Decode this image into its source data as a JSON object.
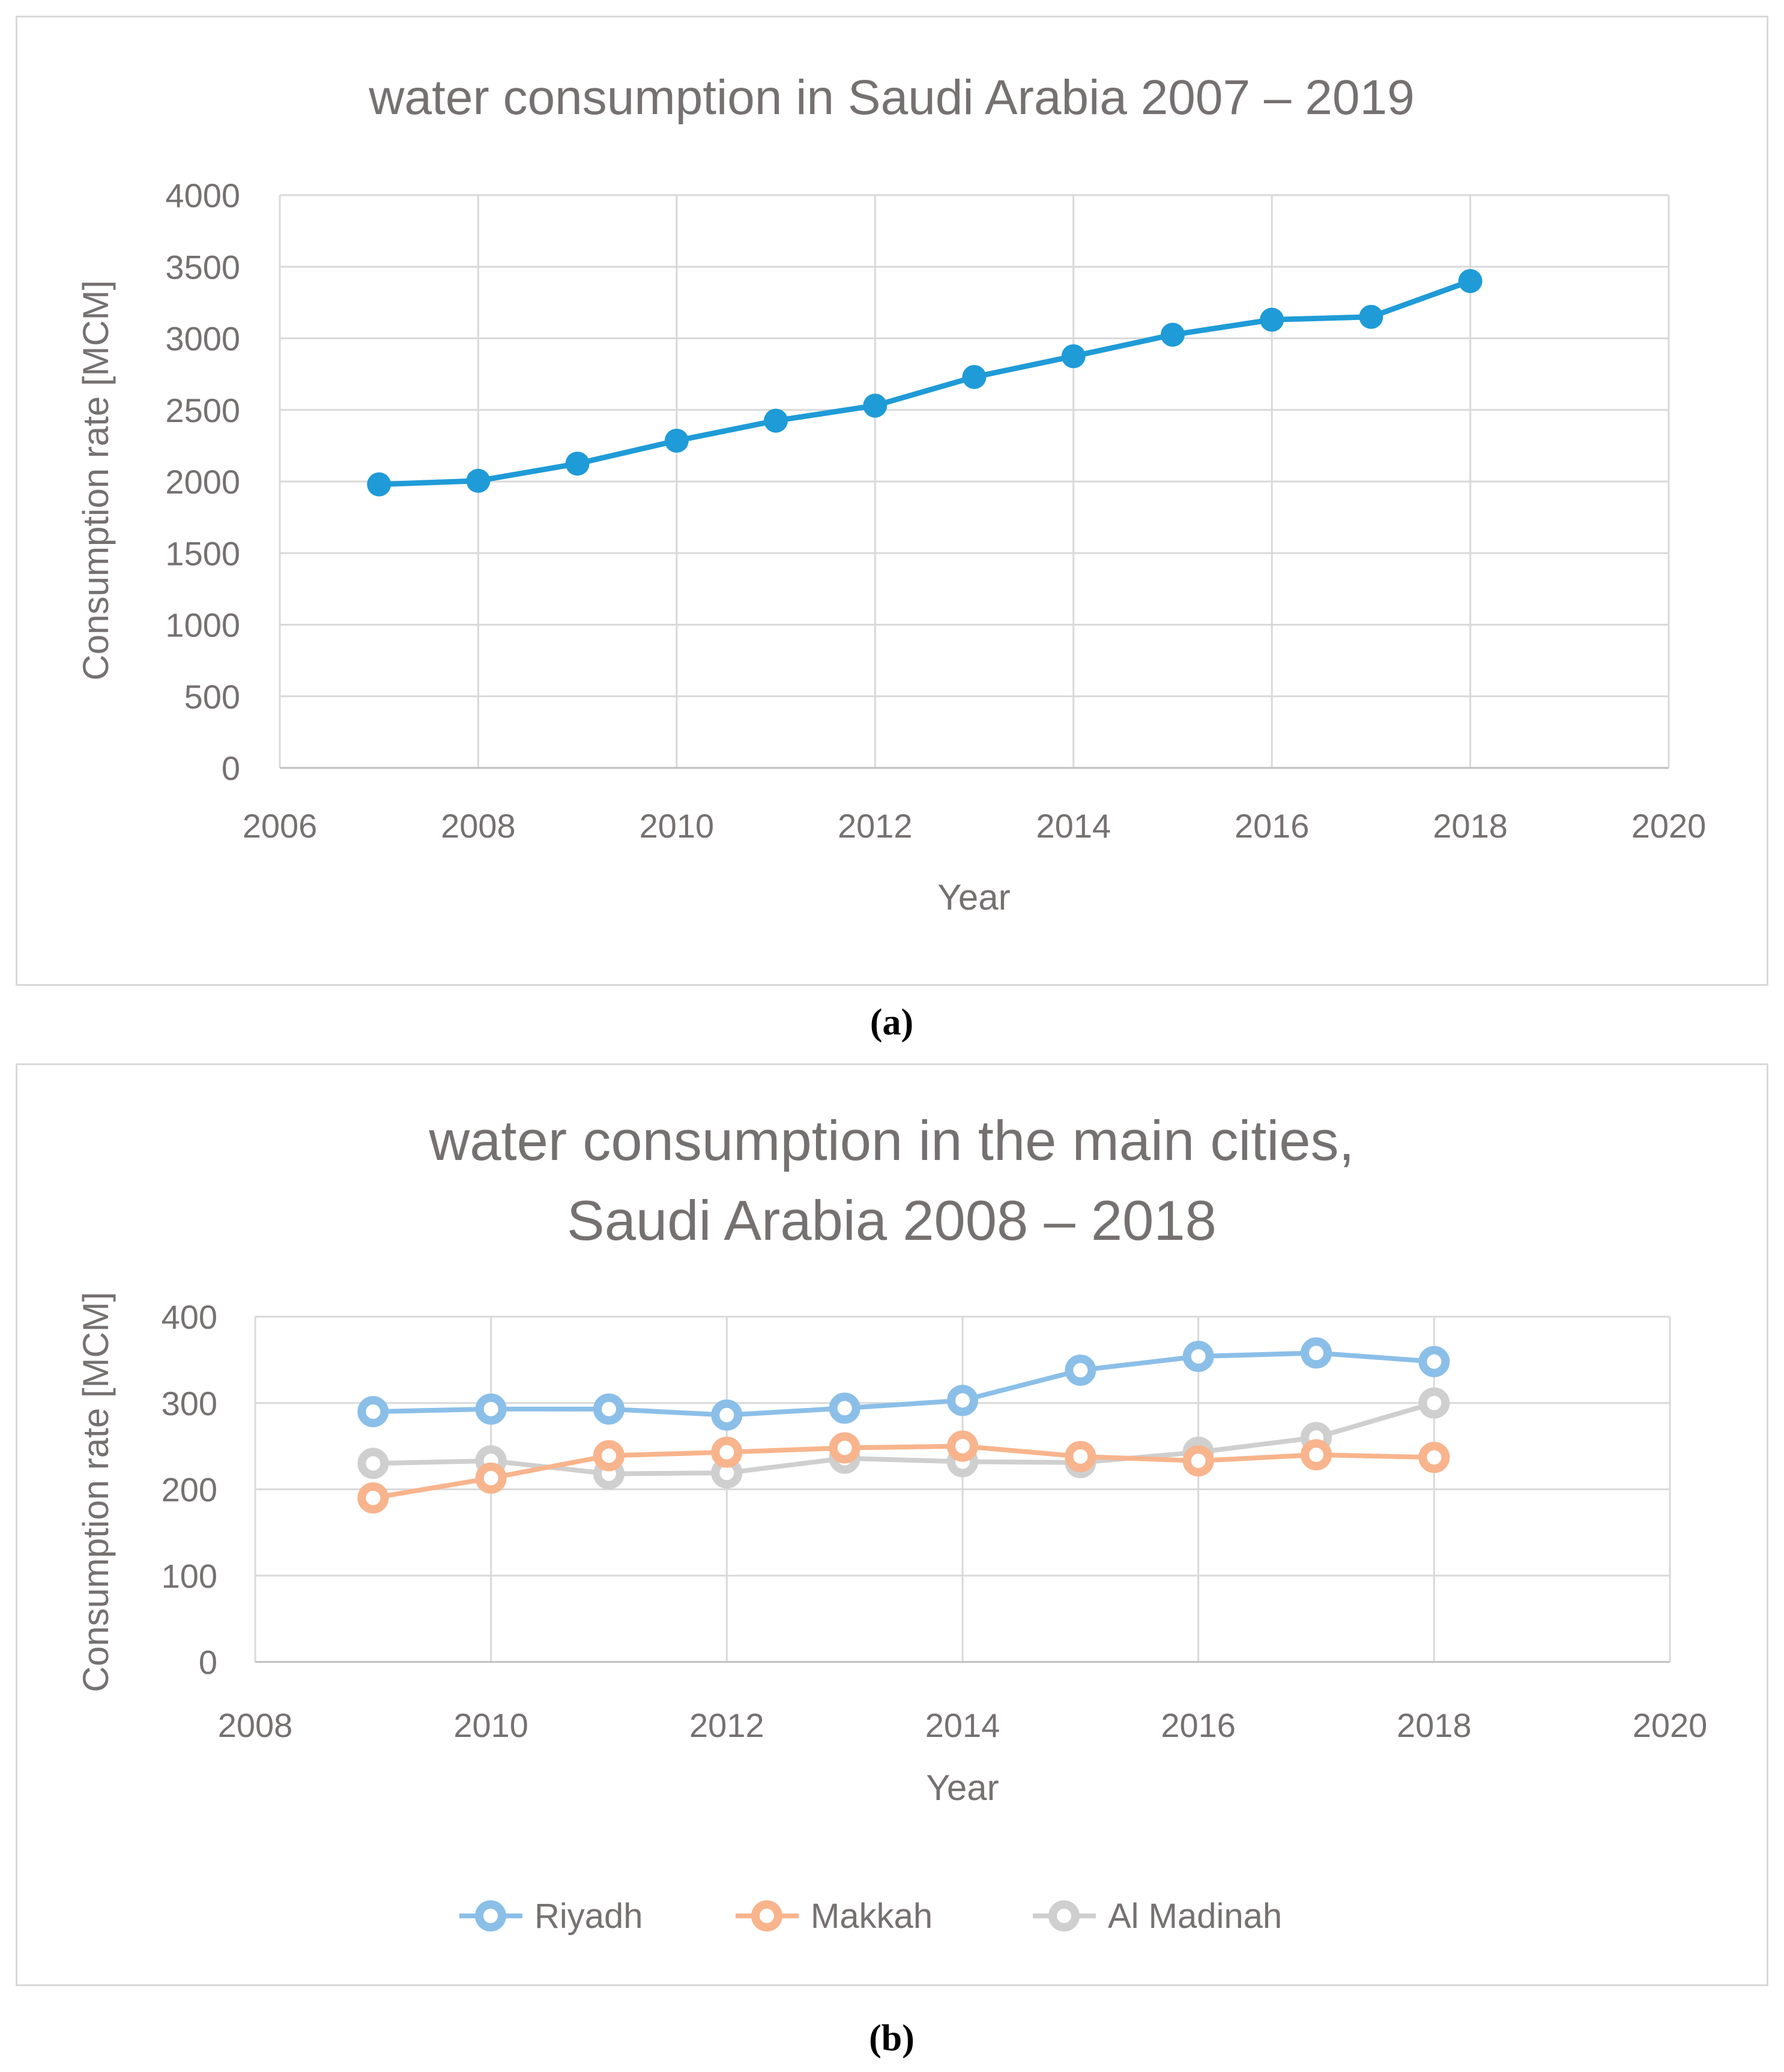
{
  "chart_data": [
    {
      "type": "line",
      "title": "water consumption in Saudi Arabia 2007 – 2019",
      "xlabel": "Year",
      "ylabel": "Consumption rate [MCM]",
      "xlim": [
        2006,
        2020
      ],
      "ylim": [
        0,
        4000
      ],
      "xticks": [
        2006,
        2008,
        2010,
        2012,
        2014,
        2016,
        2018,
        2020
      ],
      "yticks": [
        0,
        500,
        1000,
        1500,
        2000,
        2500,
        3000,
        3500,
        4000
      ],
      "grid": true,
      "legend": "none",
      "caption": "(a)",
      "series": [
        {
          "name": "Saudi Arabia",
          "color": "#1f9bd7",
          "x": [
            2007,
            2008,
            2009,
            2010,
            2011,
            2012,
            2013,
            2014,
            2015,
            2016,
            2017,
            2018
          ],
          "values": [
            1980,
            2005,
            2125,
            2285,
            2425,
            2530,
            2730,
            2875,
            3025,
            3130,
            3150,
            3400
          ]
        }
      ]
    },
    {
      "type": "line",
      "title": "water consumption in the main cities, Saudi Arabia 2008 – 2018",
      "xlabel": "Year",
      "ylabel": "Consumption rate [MCM]",
      "xlim": [
        2008,
        2020
      ],
      "ylim": [
        0,
        400
      ],
      "xticks": [
        2008,
        2010,
        2012,
        2014,
        2016,
        2018,
        2020
      ],
      "yticks": [
        0,
        100,
        200,
        300,
        400
      ],
      "grid": true,
      "legend": "bottom",
      "caption": "(b)",
      "series": [
        {
          "name": "Riyadh",
          "color": "#8bbfe8",
          "x": [
            2009,
            2010,
            2011,
            2012,
            2013,
            2014,
            2015,
            2016,
            2017,
            2018
          ],
          "values": [
            290,
            293,
            293,
            286,
            294,
            303,
            338,
            354,
            358,
            348
          ]
        },
        {
          "name": "Makkah",
          "color": "#f8b48c",
          "x": [
            2009,
            2010,
            2011,
            2012,
            2013,
            2014,
            2015,
            2016,
            2017,
            2018
          ],
          "values": [
            190,
            213,
            239,
            243,
            248,
            250,
            238,
            233,
            240,
            237
          ]
        },
        {
          "name": "Al Madinah",
          "color": "#cfcfcf",
          "x": [
            2009,
            2010,
            2011,
            2012,
            2013,
            2014,
            2015,
            2016,
            2017,
            2018
          ],
          "values": [
            230,
            233,
            218,
            219,
            236,
            232,
            231,
            243,
            260,
            300
          ]
        }
      ]
    }
  ]
}
